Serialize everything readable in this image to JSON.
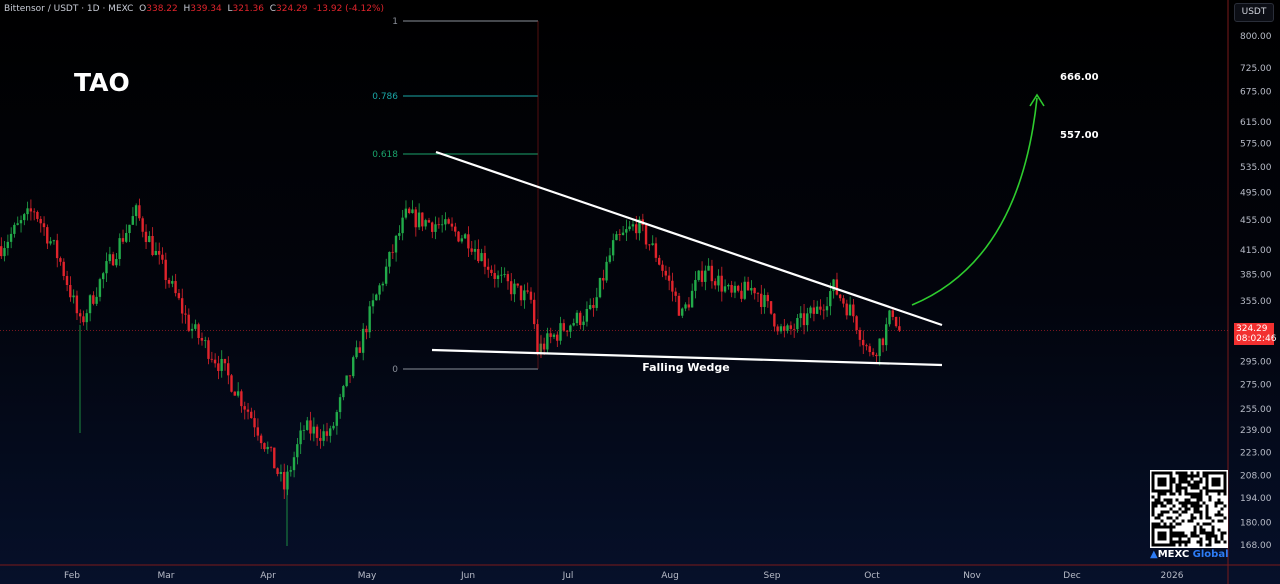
{
  "header": {
    "symbol": "Bittensor / USDT · 1D · MEXC",
    "open_label": "O",
    "open": "338.22",
    "high_label": "H",
    "high": "339.34",
    "low_label": "L",
    "low": "321.36",
    "close_label": "C",
    "close": "324.29",
    "change": "-13.92 (-4.12%)"
  },
  "ticker_title": "TAO",
  "currency_button": "USDT",
  "price_tag": {
    "price": "324.29",
    "countdown": "08:02:46"
  },
  "watermark": {
    "brand": "MEXC",
    "brand_suffix": "Global"
  },
  "colors": {
    "up": "#22ab4a",
    "down": "#e0242c",
    "wedge": "#ffffff",
    "arrow": "#2ecc2e",
    "fib_0786": "#1aa6a6",
    "fib_0618": "#1aa36b"
  },
  "chart_data": {
    "type": "candlestick",
    "scale": "log",
    "ylim": [
      160,
      830
    ],
    "y_ticks": [
      "800.00",
      "725.00",
      "675.00",
      "615.00",
      "575.00",
      "535.00",
      "495.00",
      "455.00",
      "415.00",
      "385.00",
      "355.00",
      "295.00",
      "275.00",
      "255.00",
      "239.00",
      "223.00",
      "208.00",
      "194.00",
      "180.00",
      "168.00"
    ],
    "x_ticks": [
      "Feb",
      "Mar",
      "Apr",
      "May",
      "Jun",
      "Jul",
      "Aug",
      "Sep",
      "Oct",
      "Nov",
      "Dec",
      "2026"
    ],
    "close_path": [
      [
        "2025-01-10",
        420
      ],
      [
        "2025-01-20",
        470
      ],
      [
        "2025-01-28",
        400
      ],
      [
        "2025-02-03",
        330
      ],
      [
        "2025-02-12",
        400
      ],
      [
        "2025-02-20",
        465
      ],
      [
        "2025-02-27",
        400
      ],
      [
        "2025-03-08",
        330
      ],
      [
        "2025-03-18",
        290
      ],
      [
        "2025-03-28",
        245
      ],
      [
        "2025-04-06",
        200
      ],
      [
        "2025-04-12",
        240
      ],
      [
        "2025-04-20",
        235
      ],
      [
        "2025-04-28",
        300
      ],
      [
        "2025-05-06",
        380
      ],
      [
        "2025-05-13",
        460
      ],
      [
        "2025-05-22",
        450
      ],
      [
        "2025-06-01",
        430
      ],
      [
        "2025-06-10",
        380
      ],
      [
        "2025-06-20",
        355
      ],
      [
        "2025-06-22",
        305
      ],
      [
        "2025-07-01",
        330
      ],
      [
        "2025-07-09",
        345
      ],
      [
        "2025-07-15",
        420
      ],
      [
        "2025-07-22",
        450
      ],
      [
        "2025-07-28",
        410
      ],
      [
        "2025-08-05",
        340
      ],
      [
        "2025-08-12",
        395
      ],
      [
        "2025-08-20",
        360
      ],
      [
        "2025-08-27",
        370
      ],
      [
        "2025-09-05",
        320
      ],
      [
        "2025-09-15",
        345
      ],
      [
        "2025-09-20",
        370
      ],
      [
        "2025-09-26",
        340
      ],
      [
        "2025-10-01",
        300
      ],
      [
        "2025-10-05",
        318
      ],
      [
        "2025-10-08",
        345
      ],
      [
        "2025-10-10",
        324.29
      ]
    ],
    "fib_levels": [
      {
        "level": "1"
      },
      {
        "level": "0.786"
      },
      {
        "level": "0.618"
      },
      {
        "level": "0"
      }
    ],
    "annotations": {
      "pattern": "Falling Wedge",
      "target_1": "666.00",
      "target_2": "557.00"
    },
    "current_price": 324.29
  }
}
